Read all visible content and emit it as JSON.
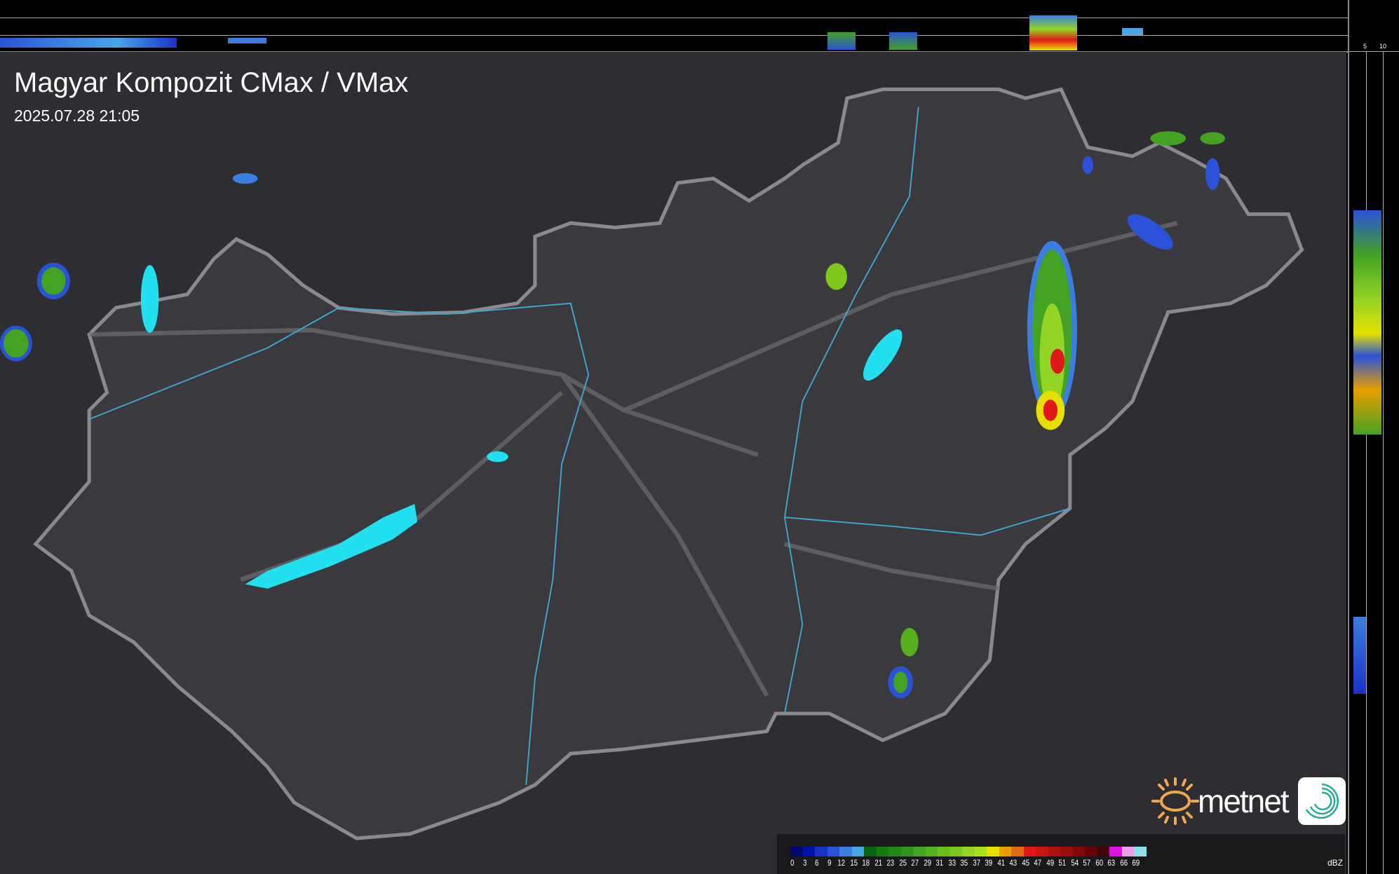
{
  "header": {
    "title": "Magyar Kompozit CMax / VMax",
    "timestamp": "2025.07.28 21:05"
  },
  "profile_axes": {
    "top_ticks": [
      "10",
      "5"
    ],
    "right_ticks": [
      "5",
      "10"
    ]
  },
  "legend": {
    "unit": "dBZ",
    "labels": [
      "0",
      "3",
      "6",
      "9",
      "12",
      "15",
      "18",
      "21",
      "23",
      "25",
      "27",
      "29",
      "31",
      "33",
      "35",
      "37",
      "39",
      "41",
      "43",
      "45",
      "47",
      "49",
      "51",
      "54",
      "57",
      "60",
      "63",
      "66",
      "69"
    ],
    "colors": [
      "#000a6e",
      "#0012a8",
      "#1a32c8",
      "#2a52d8",
      "#3c7ee0",
      "#46a6e8",
      "#0c6410",
      "#187814",
      "#22861a",
      "#2e9420",
      "#44a222",
      "#56b01e",
      "#6cbc1c",
      "#7ec81c",
      "#94d424",
      "#a8e020",
      "#e6e000",
      "#e8a000",
      "#e06c10",
      "#e01818",
      "#c81414",
      "#b01010",
      "#9a0c0c",
      "#840808",
      "#640404",
      "#3c0404",
      "#e010e0",
      "#e8a0e8",
      "#8ce0e8"
    ]
  },
  "branding": {
    "logo_text": "metnet",
    "logo_name": "metnet-logo"
  },
  "colors": {
    "background": "#2e2e32",
    "country_border": "#8a8a8e",
    "rivers": "#3aa8d0",
    "lakes": "#22e0f0"
  }
}
